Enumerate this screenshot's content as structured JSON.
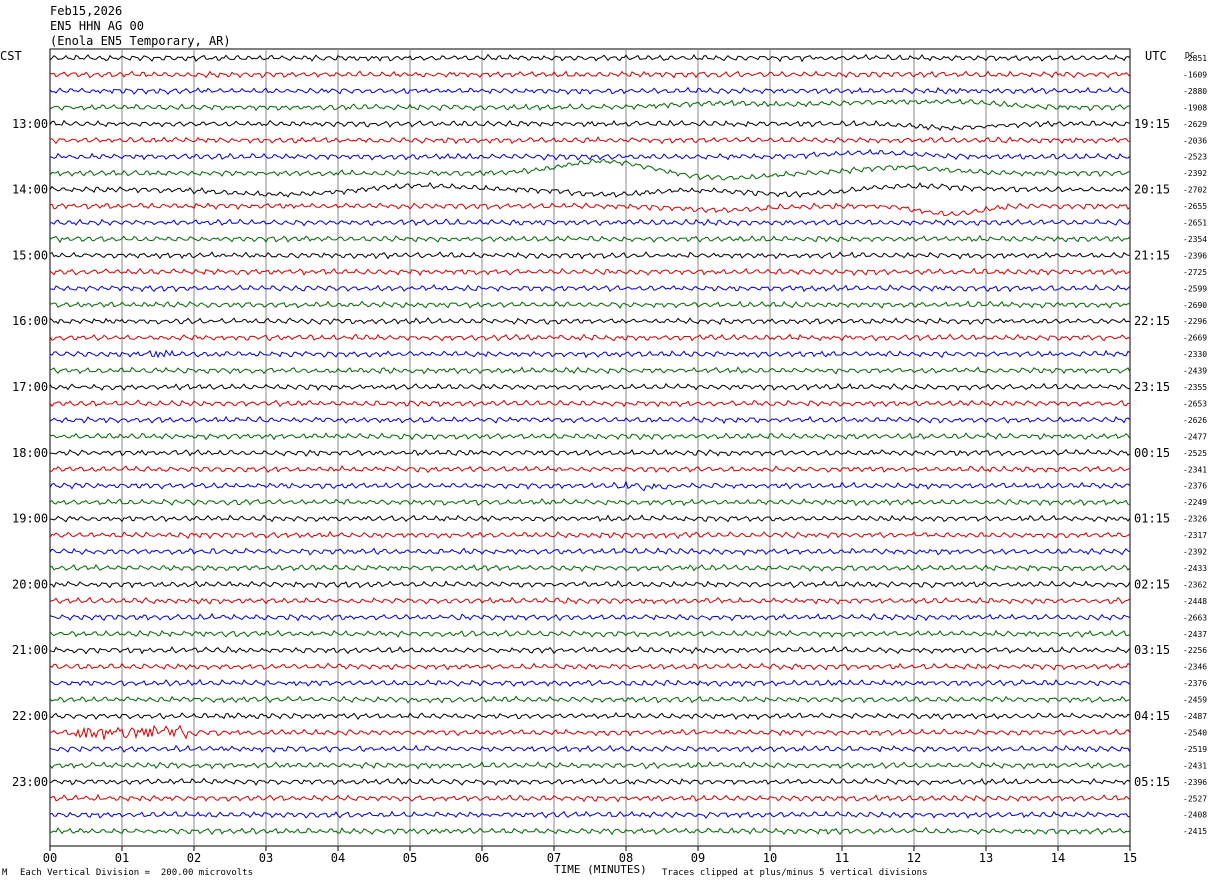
{
  "header": {
    "date": "Feb15,2026",
    "station": "EN5 HHN AG 00",
    "location": "(Enola EN5 Temporary, AR)"
  },
  "left_tz": "CST",
  "right_tz": "UTC",
  "dc_label": "DC",
  "footer": {
    "scale_note": "Each Vertical Division =  200.00 microvolts",
    "xlabel": "TIME (MINUTES)",
    "clip_note": "Traces clipped at plus/minus 5 vertical divisions",
    "corner_mark": "M"
  },
  "colors": {
    "cycle": [
      "#000000",
      "#cc0000",
      "#0000cc",
      "#006600"
    ],
    "grid": "#888888"
  },
  "chart_data": {
    "type": "line",
    "xlabel": "TIME (MINUTES)",
    "x_ticks": [
      "00",
      "01",
      "02",
      "03",
      "04",
      "05",
      "06",
      "07",
      "08",
      "09",
      "10",
      "11",
      "12",
      "13",
      "14",
      "15"
    ],
    "xlim": [
      0,
      15
    ],
    "left_hour_labels": [
      "13:00",
      "14:00",
      "15:00",
      "16:00",
      "17:00",
      "18:00",
      "19:00",
      "20:00",
      "21:00",
      "22:00",
      "23:00"
    ],
    "right_hour_labels": [
      "19:15",
      "20:15",
      "21:15",
      "22:15",
      "23:15",
      "00:15",
      "01:15",
      "02:15",
      "03:15",
      "04:15",
      "05:15"
    ],
    "first_hour_label_trace": 4,
    "traces_per_hour": 4,
    "trace_minutes": 15,
    "dc_offsets": [
      "-2851",
      "-1609",
      "-2880",
      "-1908",
      "-2629",
      "-2036",
      "-2523",
      "-2392",
      "-2702",
      "-2655",
      "-2651",
      "-2354",
      "-2396",
      "-2725",
      "-2599",
      "-2690",
      "-2296",
      "-2669",
      "-2330",
      "-2439",
      "-2355",
      "-2653",
      "-2626",
      "-2477",
      "-2525",
      "-2341",
      "-2376",
      "-2249",
      "-2326",
      "-2317",
      "-2392",
      "-2433",
      "-2362",
      "-2448",
      "-2663",
      "-2437",
      "-2256",
      "-2346",
      "-2376",
      "-2459",
      "-2487",
      "-2540",
      "-2519",
      "-2431",
      "-2396",
      "-2527",
      "-2408",
      "-2415"
    ]
  }
}
